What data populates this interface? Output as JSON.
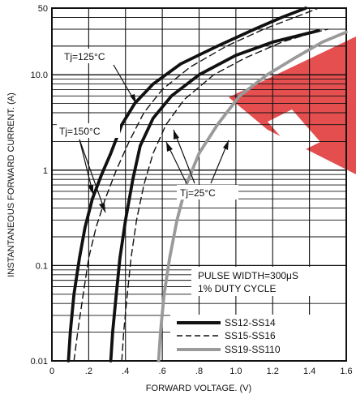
{
  "chart_data": {
    "type": "line",
    "xlabel": "FORWARD VOLTAGE. (V)",
    "ylabel": "INSTANTANEOUS FORWARD CURRENT. (A)",
    "xlim": [
      0,
      1.6
    ],
    "ylim": [
      0.01,
      50
    ],
    "yscale": "log",
    "grid": true,
    "x_ticks": [
      0,
      0.2,
      0.4,
      0.6,
      0.8,
      1.0,
      1.2,
      1.4,
      1.6
    ],
    "x_tick_labels": [
      "0",
      ".2",
      ".4",
      ".6",
      ".8",
      "1.0",
      "1.2",
      "1.4",
      "1.6"
    ],
    "y_ticks": [
      0.01,
      0.1,
      1,
      10,
      50
    ],
    "y_tick_labels": [
      "0.01",
      "0.1",
      "1",
      "10.0",
      "50"
    ],
    "legend": {
      "placement": "bottom-right",
      "entries": [
        "SS12-SS14",
        "SS15-SS16",
        "SS19-SS110"
      ]
    },
    "annotations": {
      "pulse_line1": "PULSE WIDTH=300μS",
      "pulse_line2": "1% DUTY CYCLE",
      "tj125": "Tj=125°C",
      "tj150": "Tj=150°C",
      "tj25": "Tj=25°C"
    },
    "series": [
      {
        "name": "SS12-SS14",
        "condition": "Tj=125°C",
        "style": "solid",
        "color": "#111111",
        "x": [
          0.09,
          0.1,
          0.12,
          0.15,
          0.18,
          0.22,
          0.27,
          0.32,
          0.38,
          0.45,
          0.55,
          0.7,
          0.9,
          1.1,
          1.25,
          1.38
        ],
        "y": [
          0.01,
          0.02,
          0.05,
          0.12,
          0.25,
          0.5,
          0.9,
          1.5,
          3,
          5,
          8,
          13,
          20,
          30,
          40,
          50
        ]
      },
      {
        "name": "SS15-SS16",
        "condition": "Tj=125°C",
        "style": "dashed",
        "color": "#111111",
        "x": [
          0.12,
          0.14,
          0.17,
          0.2,
          0.24,
          0.29,
          0.35,
          0.42,
          0.5,
          0.6,
          0.75,
          0.95,
          1.15,
          1.32,
          1.45
        ],
        "y": [
          0.01,
          0.02,
          0.05,
          0.12,
          0.25,
          0.5,
          1.0,
          2.0,
          4,
          7,
          12,
          20,
          30,
          40,
          50
        ]
      },
      {
        "name": "SS12-SS14",
        "condition": "Tj=25°C",
        "style": "solid",
        "color": "#111111",
        "x": [
          0.32,
          0.33,
          0.35,
          0.37,
          0.4,
          0.44,
          0.48,
          0.55,
          0.65,
          0.8,
          1.0,
          1.2,
          1.35,
          1.45
        ],
        "y": [
          0.01,
          0.02,
          0.05,
          0.12,
          0.3,
          0.8,
          1.8,
          3.5,
          6,
          10,
          16,
          22,
          26,
          29
        ]
      },
      {
        "name": "SS15-SS16",
        "condition": "Tj=25°C",
        "style": "dashed",
        "color": "#111111",
        "x": [
          0.38,
          0.39,
          0.41,
          0.43,
          0.46,
          0.5,
          0.55,
          0.62,
          0.72,
          0.88,
          1.05,
          1.25,
          1.4,
          1.5
        ],
        "y": [
          0.01,
          0.02,
          0.05,
          0.12,
          0.3,
          0.7,
          1.5,
          3,
          5.5,
          10,
          15,
          22,
          27,
          30
        ]
      },
      {
        "name": "SS19-SS110",
        "condition": "Tj=25°C",
        "style": "solid",
        "color": "#9a9a9a",
        "x": [
          0.58,
          0.59,
          0.61,
          0.64,
          0.68,
          0.73,
          0.8,
          0.9,
          1.02,
          1.17,
          1.32,
          1.47,
          1.6
        ],
        "y": [
          0.01,
          0.02,
          0.05,
          0.12,
          0.3,
          0.7,
          1.5,
          3,
          6,
          10,
          15,
          22,
          28
        ]
      }
    ]
  },
  "colors": {
    "ink": "#111111",
    "grey_series": "#9a9a9a",
    "watermark": "#e03030"
  }
}
